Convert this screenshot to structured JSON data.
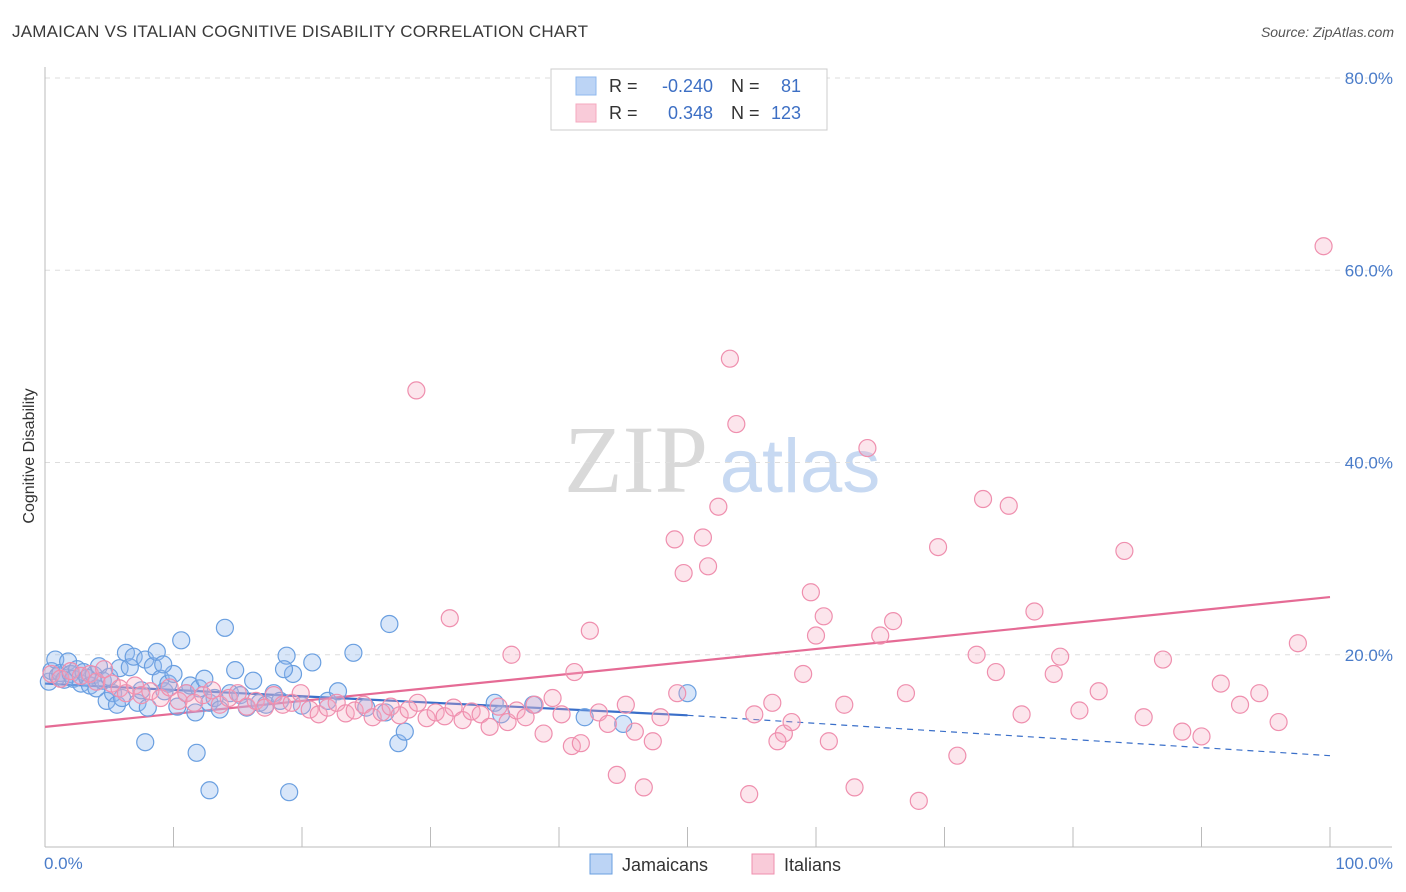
{
  "title": "JAMAICAN VS ITALIAN COGNITIVE DISABILITY CORRELATION CHART",
  "source": "Source: ZipAtlas.com",
  "watermark": {
    "zip": "ZIP",
    "atlas": "atlas"
  },
  "chart_data": {
    "type": "scatter",
    "title": "JAMAICAN VS ITALIAN COGNITIVE DISABILITY CORRELATION CHART",
    "xlabel": "",
    "ylabel": "Cognitive Disability",
    "xlim": [
      0,
      100
    ],
    "ylim": [
      0,
      80
    ],
    "x_tick_labels": [
      "0.0%",
      "100.0%"
    ],
    "y_ticks": [
      20,
      40,
      60,
      80
    ],
    "y_tick_labels": [
      "20.0%",
      "40.0%",
      "60.0%",
      "80.0%"
    ],
    "grid": true,
    "legend_position": "top-center",
    "stats_legend": [
      {
        "r_label": "R =",
        "r_value": "-0.240",
        "n_label": "N =",
        "n_value": "81",
        "color": "#8fb8ee"
      },
      {
        "r_label": "R =",
        "r_value": "0.348",
        "n_label": "N =",
        "n_value": "123",
        "color": "#f5a8bf"
      }
    ],
    "series": [
      {
        "name": "Jamaicans",
        "color": "#6a9fe0",
        "trend": {
          "x0": 0,
          "y0": 17.0,
          "x1": 50,
          "y1": 13.7,
          "dash_to_x": 100,
          "dash_to_y": 9.5
        },
        "points": [
          [
            0.3,
            17.2
          ],
          [
            0.5,
            18.3
          ],
          [
            0.8,
            19.5
          ],
          [
            1.0,
            17.8
          ],
          [
            1.2,
            18.1
          ],
          [
            1.5,
            17.4
          ],
          [
            1.8,
            19.3
          ],
          [
            2.0,
            18.0
          ],
          [
            2.2,
            17.5
          ],
          [
            2.5,
            18.5
          ],
          [
            2.8,
            17.0
          ],
          [
            3.0,
            18.2
          ],
          [
            3.3,
            17.6
          ],
          [
            3.5,
            16.8
          ],
          [
            3.8,
            17.9
          ],
          [
            4.0,
            16.5
          ],
          [
            4.2,
            18.8
          ],
          [
            4.5,
            17.3
          ],
          [
            4.8,
            15.2
          ],
          [
            5.0,
            17.7
          ],
          [
            5.3,
            16.0
          ],
          [
            5.6,
            14.8
          ],
          [
            5.8,
            18.6
          ],
          [
            6.0,
            15.5
          ],
          [
            6.3,
            20.2
          ],
          [
            6.6,
            18.7
          ],
          [
            6.9,
            19.8
          ],
          [
            7.2,
            15.0
          ],
          [
            7.5,
            16.3
          ],
          [
            7.8,
            19.5
          ],
          [
            8.0,
            14.5
          ],
          [
            8.4,
            18.8
          ],
          [
            8.7,
            20.3
          ],
          [
            9.0,
            17.5
          ],
          [
            9.3,
            16.2
          ],
          [
            9.6,
            17.0
          ],
          [
            10.0,
            18.0
          ],
          [
            10.3,
            14.6
          ],
          [
            10.6,
            21.5
          ],
          [
            11.0,
            16.0
          ],
          [
            11.3,
            16.8
          ],
          [
            11.7,
            14.0
          ],
          [
            12.0,
            16.5
          ],
          [
            12.4,
            17.5
          ],
          [
            12.8,
            15.0
          ],
          [
            13.2,
            15.5
          ],
          [
            13.6,
            14.3
          ],
          [
            14.0,
            22.8
          ],
          [
            14.4,
            16.0
          ],
          [
            14.8,
            18.4
          ],
          [
            15.2,
            15.8
          ],
          [
            15.7,
            14.5
          ],
          [
            16.2,
            17.3
          ],
          [
            16.7,
            15.0
          ],
          [
            17.2,
            14.8
          ],
          [
            17.8,
            16.0
          ],
          [
            18.3,
            15.2
          ],
          [
            18.8,
            19.9
          ],
          [
            19.3,
            18.0
          ],
          [
            20.0,
            14.7
          ],
          [
            20.8,
            19.2
          ],
          [
            22.0,
            15.2
          ],
          [
            22.8,
            16.2
          ],
          [
            24.0,
            20.2
          ],
          [
            25.0,
            14.5
          ],
          [
            26.5,
            14.0
          ],
          [
            26.8,
            23.2
          ],
          [
            27.5,
            10.8
          ],
          [
            28.0,
            12.0
          ],
          [
            35.0,
            15.0
          ],
          [
            35.5,
            13.8
          ],
          [
            38.0,
            14.8
          ],
          [
            42.0,
            13.5
          ],
          [
            45.0,
            12.8
          ],
          [
            50.0,
            16.0
          ],
          [
            7.8,
            10.9
          ],
          [
            11.8,
            9.8
          ],
          [
            12.8,
            5.9
          ],
          [
            19.0,
            5.7
          ],
          [
            18.6,
            18.5
          ],
          [
            9.2,
            19.0
          ]
        ]
      },
      {
        "name": "Italians",
        "color": "#ef8fae",
        "trend": {
          "x0": 0,
          "y0": 12.5,
          "x1": 100,
          "y1": 26.0
        },
        "points": [
          [
            0.5,
            18.0
          ],
          [
            1.2,
            17.5
          ],
          [
            2.0,
            18.3
          ],
          [
            2.8,
            17.8
          ],
          [
            3.5,
            18.0
          ],
          [
            4.0,
            17.2
          ],
          [
            4.6,
            18.5
          ],
          [
            5.2,
            17.0
          ],
          [
            5.8,
            16.5
          ],
          [
            6.3,
            16.0
          ],
          [
            7.0,
            16.8
          ],
          [
            7.5,
            15.8
          ],
          [
            8.2,
            16.2
          ],
          [
            9.0,
            15.5
          ],
          [
            9.7,
            16.6
          ],
          [
            10.4,
            15.2
          ],
          [
            11.0,
            16.0
          ],
          [
            11.6,
            15.0
          ],
          [
            12.3,
            15.8
          ],
          [
            13.0,
            16.3
          ],
          [
            13.6,
            14.8
          ],
          [
            14.3,
            15.5
          ],
          [
            15.0,
            16.0
          ],
          [
            15.7,
            14.6
          ],
          [
            16.4,
            15.2
          ],
          [
            17.1,
            14.5
          ],
          [
            17.8,
            15.8
          ],
          [
            18.5,
            14.8
          ],
          [
            19.2,
            15.0
          ],
          [
            19.9,
            16.0
          ],
          [
            20.6,
            14.3
          ],
          [
            21.3,
            13.8
          ],
          [
            22.0,
            14.5
          ],
          [
            22.7,
            15.0
          ],
          [
            23.4,
            13.9
          ],
          [
            24.1,
            14.2
          ],
          [
            24.8,
            14.8
          ],
          [
            25.5,
            13.5
          ],
          [
            26.2,
            14.0
          ],
          [
            26.9,
            14.6
          ],
          [
            27.6,
            13.7
          ],
          [
            28.3,
            14.3
          ],
          [
            29.0,
            15.0
          ],
          [
            29.7,
            13.4
          ],
          [
            30.4,
            14.0
          ],
          [
            31.1,
            13.6
          ],
          [
            31.8,
            14.5
          ],
          [
            32.5,
            13.2
          ],
          [
            33.2,
            14.1
          ],
          [
            33.9,
            13.8
          ],
          [
            34.6,
            12.5
          ],
          [
            35.3,
            14.6
          ],
          [
            36.0,
            13.0
          ],
          [
            36.7,
            14.2
          ],
          [
            37.4,
            13.5
          ],
          [
            38.1,
            14.8
          ],
          [
            38.8,
            11.8
          ],
          [
            39.5,
            15.5
          ],
          [
            40.2,
            13.8
          ],
          [
            41.0,
            10.5
          ],
          [
            41.7,
            10.8
          ],
          [
            41.2,
            18.2
          ],
          [
            42.4,
            22.5
          ],
          [
            43.1,
            14.0
          ],
          [
            43.8,
            12.8
          ],
          [
            44.5,
            7.5
          ],
          [
            45.2,
            14.8
          ],
          [
            45.9,
            12.0
          ],
          [
            46.6,
            6.2
          ],
          [
            47.3,
            11.0
          ],
          [
            47.9,
            13.5
          ],
          [
            49.2,
            16.0
          ],
          [
            49.0,
            32.0
          ],
          [
            49.7,
            28.5
          ],
          [
            51.2,
            32.2
          ],
          [
            51.6,
            29.2
          ],
          [
            52.4,
            35.4
          ],
          [
            53.3,
            50.8
          ],
          [
            53.8,
            44.0
          ],
          [
            57.5,
            11.8
          ],
          [
            54.8,
            5.5
          ],
          [
            55.2,
            13.8
          ],
          [
            56.6,
            15.0
          ],
          [
            57.0,
            11.0
          ],
          [
            58.1,
            13.0
          ],
          [
            59.0,
            18.0
          ],
          [
            59.6,
            26.5
          ],
          [
            60.0,
            22.0
          ],
          [
            60.6,
            24.0
          ],
          [
            61.0,
            11.0
          ],
          [
            62.2,
            14.8
          ],
          [
            63.0,
            6.2
          ],
          [
            64.0,
            41.5
          ],
          [
            65.0,
            22.0
          ],
          [
            66.0,
            23.5
          ],
          [
            67.0,
            16.0
          ],
          [
            68.0,
            4.8
          ],
          [
            69.5,
            31.2
          ],
          [
            71.0,
            9.5
          ],
          [
            72.5,
            20.0
          ],
          [
            73.0,
            36.2
          ],
          [
            74.0,
            18.2
          ],
          [
            75.0,
            35.5
          ],
          [
            76.0,
            13.8
          ],
          [
            77.0,
            24.5
          ],
          [
            78.5,
            18.0
          ],
          [
            79.0,
            19.8
          ],
          [
            80.5,
            14.2
          ],
          [
            82.0,
            16.2
          ],
          [
            84.0,
            30.8
          ],
          [
            85.5,
            13.5
          ],
          [
            87.0,
            19.5
          ],
          [
            88.5,
            12.0
          ],
          [
            90.0,
            11.5
          ],
          [
            91.5,
            17.0
          ],
          [
            93.0,
            14.8
          ],
          [
            94.5,
            16.0
          ],
          [
            96.0,
            13.0
          ],
          [
            97.5,
            21.2
          ],
          [
            99.5,
            62.5
          ],
          [
            31.5,
            23.8
          ],
          [
            36.3,
            20.0
          ],
          [
            28.9,
            47.5
          ]
        ]
      }
    ]
  }
}
